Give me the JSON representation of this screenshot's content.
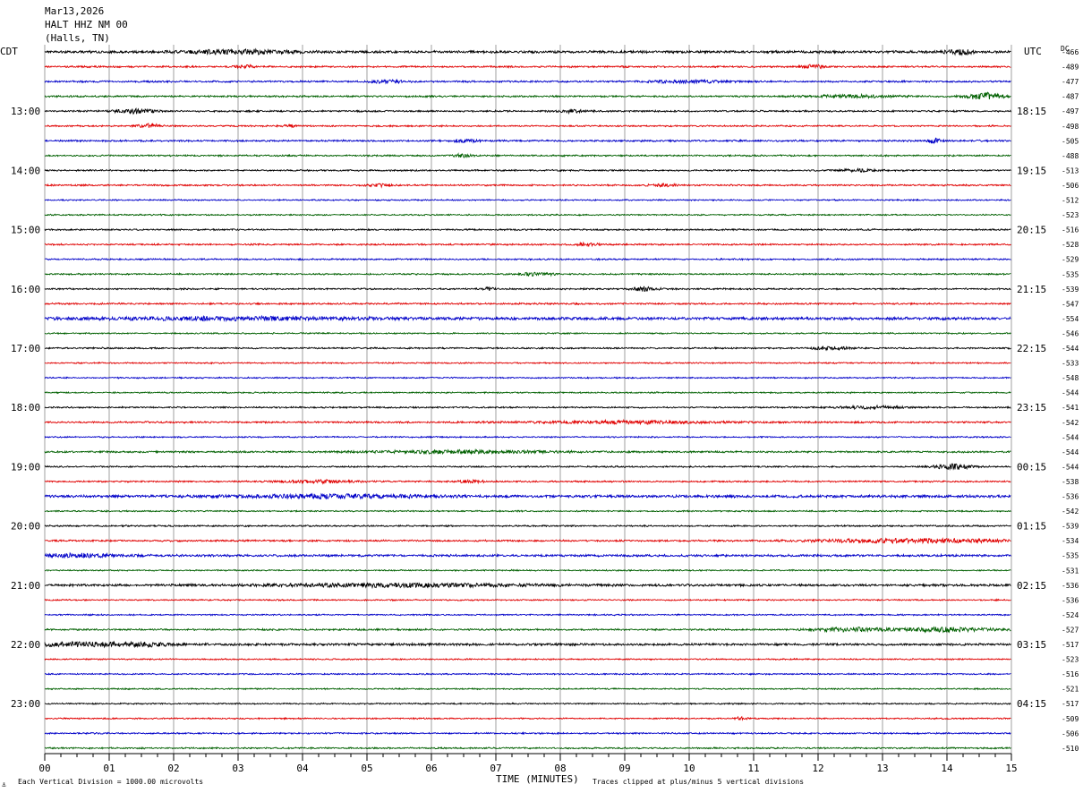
{
  "header": {
    "line1": "Mar13,2026",
    "line2": "HALT HHZ NM 00",
    "line3": "(Halls, TN)"
  },
  "chart_data": {
    "type": "line",
    "left_axis_label": "CDT",
    "right_axis_label": "UTC",
    "dc_label": "DC",
    "xlabel": "TIME (MINUTES)",
    "xlim": [
      0,
      15
    ],
    "x_ticks": [
      "00",
      "01",
      "02",
      "03",
      "04",
      "05",
      "06",
      "07",
      "08",
      "09",
      "10",
      "11",
      "12",
      "13",
      "14",
      "15"
    ],
    "left_hour_labels": [
      "13:00",
      "14:00",
      "15:00",
      "16:00",
      "17:00",
      "18:00",
      "19:00",
      "20:00",
      "21:00",
      "22:00",
      "23:00"
    ],
    "right_hour_labels": [
      "18:15",
      "19:15",
      "20:15",
      "21:15",
      "22:15",
      "23:15",
      "00:15",
      "01:15",
      "02:15",
      "03:15",
      "04:15"
    ],
    "trace_colors": [
      "#000000",
      "#e00000",
      "#0000c8",
      "#006000"
    ],
    "traces": [
      {
        "dc": "-466",
        "amp": 1.2,
        "events": [
          {
            "x": 3.0,
            "a": 2.0,
            "w": 0.8
          },
          {
            "x": 14.2,
            "a": 2.2,
            "w": 0.2
          }
        ]
      },
      {
        "dc": "-489",
        "amp": 0.8,
        "events": [
          {
            "x": 3.1,
            "a": 2.0,
            "w": 0.15
          },
          {
            "x": 11.9,
            "a": 1.8,
            "w": 0.2
          }
        ]
      },
      {
        "dc": "-477",
        "amp": 0.8,
        "events": [
          {
            "x": 5.3,
            "a": 1.5,
            "w": 0.3
          },
          {
            "x": 10.0,
            "a": 1.4,
            "w": 0.6
          }
        ]
      },
      {
        "dc": "-487",
        "amp": 0.8,
        "events": [
          {
            "x": 14.6,
            "a": 4.0,
            "w": 0.25
          },
          {
            "x": 12.5,
            "a": 1.5,
            "w": 0.6
          }
        ]
      },
      {
        "dc": "-497",
        "amp": 0.8,
        "events": [
          {
            "x": 1.4,
            "a": 2.5,
            "w": 0.3
          },
          {
            "x": 8.2,
            "a": 1.5,
            "w": 0.2
          }
        ]
      },
      {
        "dc": "-498",
        "amp": 0.7,
        "events": [
          {
            "x": 1.6,
            "a": 3.0,
            "w": 0.15
          },
          {
            "x": 3.8,
            "a": 1.5,
            "w": 0.1
          }
        ]
      },
      {
        "dc": "-505",
        "amp": 0.8,
        "events": [
          {
            "x": 6.5,
            "a": 1.5,
            "w": 0.2
          },
          {
            "x": 13.8,
            "a": 2.5,
            "w": 0.1
          }
        ]
      },
      {
        "dc": "-488",
        "amp": 0.7,
        "events": [
          {
            "x": 6.5,
            "a": 1.6,
            "w": 0.15
          }
        ]
      },
      {
        "dc": "-513",
        "amp": 0.7,
        "events": [
          {
            "x": 12.6,
            "a": 1.4,
            "w": 0.3
          }
        ]
      },
      {
        "dc": "-506",
        "amp": 0.7,
        "events": [
          {
            "x": 9.6,
            "a": 1.5,
            "w": 0.2
          },
          {
            "x": 5.2,
            "a": 1.3,
            "w": 0.2
          }
        ]
      },
      {
        "dc": "-512",
        "amp": 0.6,
        "events": []
      },
      {
        "dc": "-523",
        "amp": 0.6,
        "events": []
      },
      {
        "dc": "-516",
        "amp": 0.7,
        "events": []
      },
      {
        "dc": "-528",
        "amp": 0.7,
        "events": [
          {
            "x": 8.4,
            "a": 1.4,
            "w": 0.2
          }
        ]
      },
      {
        "dc": "-529",
        "amp": 0.7,
        "events": []
      },
      {
        "dc": "-535",
        "amp": 0.7,
        "events": [
          {
            "x": 7.6,
            "a": 1.4,
            "w": 0.3
          }
        ]
      },
      {
        "dc": "-539",
        "amp": 0.7,
        "events": [
          {
            "x": 9.3,
            "a": 2.2,
            "w": 0.2
          },
          {
            "x": 6.9,
            "a": 1.3,
            "w": 0.1
          }
        ]
      },
      {
        "dc": "-547",
        "amp": 0.8,
        "events": []
      },
      {
        "dc": "-554",
        "amp": 1.4,
        "events": [
          {
            "x": 3.0,
            "a": 1.3,
            "w": 2.0
          }
        ]
      },
      {
        "dc": "-546",
        "amp": 0.6,
        "events": []
      },
      {
        "dc": "-544",
        "amp": 0.7,
        "events": [
          {
            "x": 12.2,
            "a": 1.6,
            "w": 0.3
          }
        ]
      },
      {
        "dc": "-533",
        "amp": 0.6,
        "events": []
      },
      {
        "dc": "-548",
        "amp": 0.6,
        "events": []
      },
      {
        "dc": "-544",
        "amp": 0.6,
        "events": []
      },
      {
        "dc": "-541",
        "amp": 0.7,
        "events": [
          {
            "x": 12.8,
            "a": 1.4,
            "w": 0.5
          }
        ]
      },
      {
        "dc": "-542",
        "amp": 0.8,
        "events": [
          {
            "x": 9.0,
            "a": 1.3,
            "w": 1.5
          }
        ]
      },
      {
        "dc": "-544",
        "amp": 0.6,
        "events": []
      },
      {
        "dc": "-544",
        "amp": 0.8,
        "events": [
          {
            "x": 6.5,
            "a": 1.5,
            "w": 1.5
          }
        ]
      },
      {
        "dc": "-544",
        "amp": 0.7,
        "events": [
          {
            "x": 14.1,
            "a": 2.6,
            "w": 0.3
          }
        ]
      },
      {
        "dc": "-538",
        "amp": 0.7,
        "events": [
          {
            "x": 4.2,
            "a": 1.4,
            "w": 0.6
          },
          {
            "x": 6.6,
            "a": 1.3,
            "w": 0.2
          }
        ]
      },
      {
        "dc": "-536",
        "amp": 1.3,
        "events": [
          {
            "x": 4.5,
            "a": 1.6,
            "w": 1.4
          }
        ]
      },
      {
        "dc": "-542",
        "amp": 0.6,
        "events": []
      },
      {
        "dc": "-539",
        "amp": 0.7,
        "events": []
      },
      {
        "dc": "-534",
        "amp": 0.8,
        "events": [
          {
            "x": 13.5,
            "a": 2.0,
            "w": 1.5
          }
        ]
      },
      {
        "dc": "-535",
        "amp": 1.1,
        "events": [
          {
            "x": 0.5,
            "a": 1.8,
            "w": 0.6
          }
        ]
      },
      {
        "dc": "-531",
        "amp": 0.6,
        "events": []
      },
      {
        "dc": "-536",
        "amp": 1.1,
        "events": [
          {
            "x": 5.5,
            "a": 1.6,
            "w": 2.0
          }
        ]
      },
      {
        "dc": "-536",
        "amp": 0.6,
        "events": []
      },
      {
        "dc": "-524",
        "amp": 0.6,
        "events": []
      },
      {
        "dc": "-527",
        "amp": 0.8,
        "events": [
          {
            "x": 12.5,
            "a": 2.0,
            "w": 0.6
          },
          {
            "x": 14.0,
            "a": 2.2,
            "w": 0.7
          }
        ]
      },
      {
        "dc": "-517",
        "amp": 1.1,
        "events": [
          {
            "x": 0.6,
            "a": 2.0,
            "w": 0.8
          },
          {
            "x": 1.6,
            "a": 1.5,
            "w": 0.4
          }
        ]
      },
      {
        "dc": "-523",
        "amp": 0.6,
        "events": []
      },
      {
        "dc": "-516",
        "amp": 0.6,
        "events": []
      },
      {
        "dc": "-521",
        "amp": 0.6,
        "events": []
      },
      {
        "dc": "-517",
        "amp": 0.6,
        "events": []
      },
      {
        "dc": "-509",
        "amp": 0.6,
        "events": [
          {
            "x": 10.8,
            "a": 1.5,
            "w": 0.1
          }
        ]
      },
      {
        "dc": "-506",
        "amp": 0.7,
        "events": []
      },
      {
        "dc": "-510",
        "amp": 0.7,
        "events": []
      }
    ]
  },
  "footer": {
    "left_note": "Each Vertical Division = 1000.00 microvolts",
    "right_note": "Traces clipped at plus/minus 5 vertical divisions",
    "corner_mark": "⚓"
  }
}
